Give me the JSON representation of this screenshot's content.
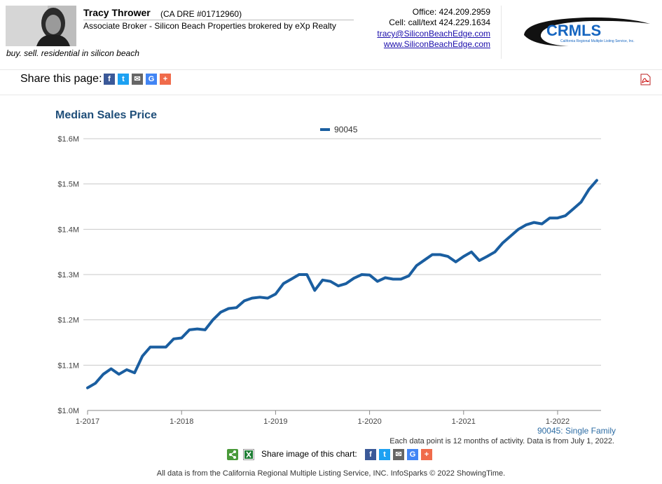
{
  "agent": {
    "name": "Tracy Thrower",
    "license": "(CA DRE #01712960)",
    "title": "Associate Broker - Silicon Beach Properties brokered by eXp Realty",
    "tagline": "buy. sell. residential in silicon beach",
    "office": "Office: 424.209.2959",
    "cell": "Cell: call/text 424.229.1634",
    "email": "tracy@SiliconBeachEdge.com",
    "website": "www.SiliconBeachEdge.com"
  },
  "logo": {
    "text": "CRMLS",
    "subtext": "California Regional Multiple Listing Service, Inc."
  },
  "share_page": {
    "label": "Share this page:",
    "buttons": [
      {
        "name": "facebook",
        "glyph": "f",
        "color": "#3b5998"
      },
      {
        "name": "twitter",
        "glyph": "t",
        "color": "#1da1f2"
      },
      {
        "name": "email",
        "glyph": "✉",
        "color": "#666666"
      },
      {
        "name": "google",
        "glyph": "G",
        "color": "#4285f4"
      },
      {
        "name": "more",
        "glyph": "+",
        "color": "#f06b4b"
      }
    ]
  },
  "share_image": {
    "label": "Share image of this chart:",
    "buttons": [
      {
        "name": "facebook",
        "glyph": "f",
        "color": "#3b5998"
      },
      {
        "name": "twitter",
        "glyph": "t",
        "color": "#1da1f2"
      },
      {
        "name": "email",
        "glyph": "✉",
        "color": "#666666"
      },
      {
        "name": "google",
        "glyph": "G",
        "color": "#4285f4"
      },
      {
        "name": "more",
        "glyph": "+",
        "color": "#f06b4b"
      }
    ]
  },
  "footnotes": {
    "series_type": "90045: Single Family",
    "info": "Each data point is 12 months of activity. Data is from July 1, 2022.",
    "footer": "All data is from the California Regional Multiple Listing Service, INC. InfoSparks © 2022 ShowingTime."
  },
  "colors": {
    "line": "#1a5ea0",
    "title": "#1f4e79",
    "grid": "#c8c8c8"
  },
  "chart_data": {
    "type": "line",
    "title": "Median Sales Price",
    "xlabel": "",
    "ylabel": "",
    "legend_position": "top-center",
    "grid": true,
    "ylim": [
      1000000,
      1600000
    ],
    "y_ticks": [
      1000000,
      1100000,
      1200000,
      1300000,
      1400000,
      1500000,
      1600000
    ],
    "y_tick_labels": [
      "$1.0M",
      "$1.1M",
      "$1.2M",
      "$1.3M",
      "$1.4M",
      "$1.5M",
      "$1.6M"
    ],
    "x_tick_labels": [
      "1-2017",
      "1-2018",
      "1-2019",
      "1-2020",
      "1-2021",
      "1-2022"
    ],
    "x": [
      "1-2017",
      "2-2017",
      "3-2017",
      "4-2017",
      "5-2017",
      "6-2017",
      "7-2017",
      "8-2017",
      "9-2017",
      "10-2017",
      "11-2017",
      "12-2017",
      "1-2018",
      "2-2018",
      "3-2018",
      "4-2018",
      "5-2018",
      "6-2018",
      "7-2018",
      "8-2018",
      "9-2018",
      "10-2018",
      "11-2018",
      "12-2018",
      "1-2019",
      "2-2019",
      "3-2019",
      "4-2019",
      "5-2019",
      "6-2019",
      "7-2019",
      "8-2019",
      "9-2019",
      "10-2019",
      "11-2019",
      "12-2019",
      "1-2020",
      "2-2020",
      "3-2020",
      "4-2020",
      "5-2020",
      "6-2020",
      "7-2020",
      "8-2020",
      "9-2020",
      "10-2020",
      "11-2020",
      "12-2020",
      "1-2021",
      "2-2021",
      "3-2021",
      "4-2021",
      "5-2021",
      "6-2021",
      "7-2021",
      "8-2021",
      "9-2021",
      "10-2021",
      "11-2021",
      "12-2021",
      "1-2022",
      "2-2022",
      "3-2022",
      "4-2022",
      "5-2022",
      "6-2022"
    ],
    "series": [
      {
        "name": "90045",
        "values": [
          1050000,
          1060000,
          1080000,
          1092000,
          1080000,
          1090000,
          1083000,
          1120000,
          1140000,
          1140000,
          1140000,
          1158000,
          1160000,
          1178000,
          1180000,
          1178000,
          1200000,
          1217000,
          1225000,
          1227000,
          1242000,
          1248000,
          1250000,
          1248000,
          1257000,
          1280000,
          1290000,
          1300000,
          1300000,
          1265000,
          1288000,
          1285000,
          1275000,
          1280000,
          1292000,
          1300000,
          1299000,
          1285000,
          1293000,
          1290000,
          1290000,
          1297000,
          1320000,
          1332000,
          1344000,
          1344000,
          1340000,
          1328000,
          1340000,
          1350000,
          1331000,
          1340000,
          1350000,
          1370000,
          1385000,
          1400000,
          1410000,
          1415000,
          1412000,
          1425000,
          1425000,
          1430000,
          1445000,
          1460000,
          1488000,
          1508000
        ]
      }
    ]
  }
}
